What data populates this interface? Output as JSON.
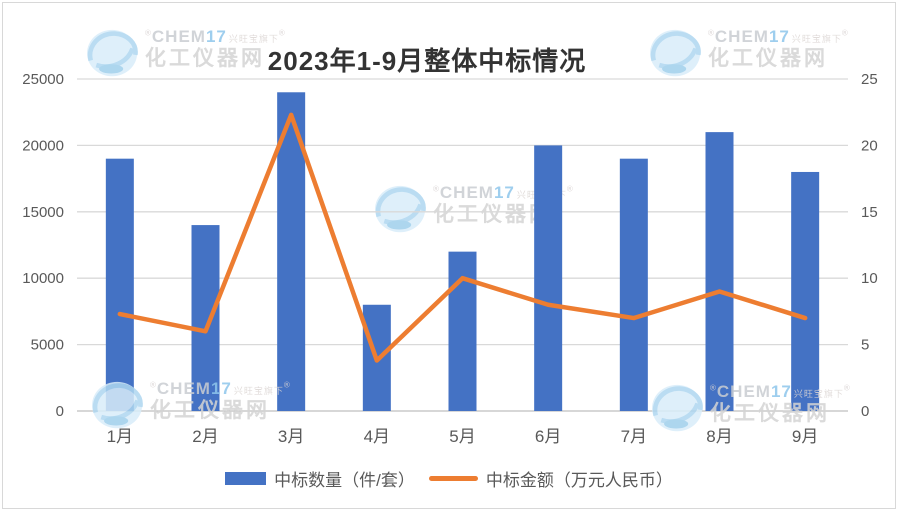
{
  "title": "2023年1-9月整体中标情况",
  "legend": [
    {
      "label": "中标数量（件/套）",
      "color": "#4472C4",
      "marker": "bar"
    },
    {
      "label": "中标金额（万元人民币）",
      "color": "#ED7D31",
      "marker": "line"
    }
  ],
  "watermark": {
    "brand_gray": "CHEM",
    "brand_blue": "17",
    "tagline": "兴旺宝旗下",
    "site": "化工仪器网",
    "reg": "®",
    "logo": "chem17-globe-swirl"
  },
  "colors": {
    "bar": "#4472C4",
    "line": "#ED7D31",
    "grid": "#D9D9D9",
    "axis_line": "#BFBFBF",
    "tick_text": "#595959",
    "title_text": "#333333",
    "background": "#FFFFFF",
    "border": "#D8D8D8"
  },
  "chart_data": {
    "type": "bar",
    "combo": "bar+line dual axis",
    "title": "2023年1-9月整体中标情况",
    "categories": [
      "1月",
      "2月",
      "3月",
      "4月",
      "5月",
      "6月",
      "7月",
      "8月",
      "9月"
    ],
    "series": [
      {
        "name": "中标数量（件/套）",
        "type": "bar",
        "axis": "left",
        "color": "#4472C4",
        "values": [
          19000,
          14000,
          24000,
          8000,
          12000,
          20000,
          19000,
          21000,
          18000
        ]
      },
      {
        "name": "中标金额（万元人民币）",
        "type": "line",
        "axis": "right",
        "color": "#ED7D31",
        "values": [
          7.3,
          6,
          22.3,
          3.8,
          10,
          8,
          7,
          9,
          7
        ]
      }
    ],
    "left_axis": {
      "min": 0,
      "max": 25000,
      "step": 5000,
      "ticks": [
        "0",
        "5000",
        "10000",
        "15000",
        "20000",
        "25000"
      ]
    },
    "right_axis": {
      "min": 0,
      "max": 25,
      "step": 5,
      "ticks": [
        "0",
        "5",
        "10",
        "15",
        "20",
        "25"
      ]
    },
    "grid": true,
    "legend_position": "bottom"
  }
}
